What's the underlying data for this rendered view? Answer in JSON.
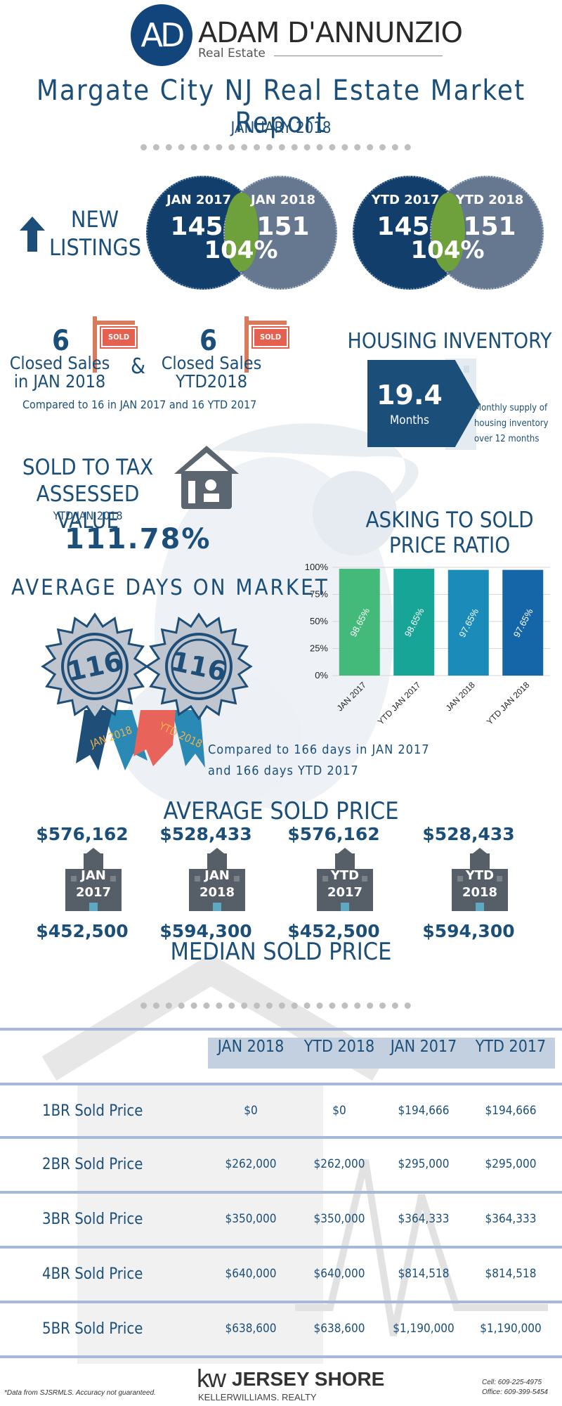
{
  "header": {
    "logo_mark": "AD",
    "brand_name": "ADAM D'ANNUNZIO",
    "brand_sub": "Real Estate",
    "title": "Margate City NJ Real Estate Market Report",
    "month": "JANUARY 2018"
  },
  "new_listings": {
    "label_line1": "NEW",
    "label_line2": "LISTINGS",
    "monthly": {
      "label_a": "JAN 2017",
      "value_a": "145",
      "label_b": "JAN 2018",
      "value_b": "151",
      "pct": "104%"
    },
    "ytd": {
      "label_a": "YTD 2017",
      "value_a": "145",
      "label_b": "YTD 2018",
      "value_b": "151",
      "pct": "104%"
    }
  },
  "closed_sales": {
    "count_month": "6",
    "label_month_1": "Closed Sales",
    "label_month_2": "in JAN 2018",
    "amp": "&",
    "count_ytd": "6",
    "label_ytd_1": "Closed Sales",
    "label_ytd_2": "YTD2018",
    "sign_text": "SOLD",
    "compare": "Compared to 16 in JAN 2017 and 16 YTD 2017"
  },
  "housing_inventory": {
    "title": "HOUSING INVENTORY",
    "value": "19.4",
    "unit": "Months",
    "note_1": "Monthly supply of",
    "note_2": "housing inventory",
    "note_3": "over 12 months"
  },
  "tax_assessed": {
    "title_1": "SOLD TO TAX",
    "title_2": "ASSESSED VALUE",
    "subtitle": "YTD JAN 2018",
    "value": "111.78%"
  },
  "days_on_market": {
    "title": "AVERAGE DAYS ON MARKET",
    "value_a": "116",
    "ribbon_a": "JAN 2018",
    "value_b": "116",
    "ribbon_b": "YTD 2018",
    "compare_1": "Compared to 166 days in JAN 2017",
    "compare_2": "and 166 days YTD 2017"
  },
  "chart_data": {
    "type": "bar",
    "title": "ASKING TO SOLD PRICE RATIO",
    "categories": [
      "JAN 2017",
      "YTD JAN 2017",
      "JAN 2018",
      "YTD JAN 2018"
    ],
    "values": [
      98.65,
      98.65,
      97.65,
      97.65
    ],
    "data_labels": [
      "98.65%",
      "98.65%",
      "97.65%",
      "97.65%"
    ],
    "colors": [
      "#43b97a",
      "#16a596",
      "#1b8cba",
      "#1566a8"
    ],
    "ylim": [
      0,
      100
    ],
    "ytick_labels": [
      "0%",
      "25%",
      "50%",
      "75%",
      "100%"
    ],
    "ytick_values": [
      0,
      25,
      50,
      75,
      100
    ],
    "grid": true
  },
  "sold_price": {
    "avg_title": "AVERAGE SOLD PRICE",
    "median_title": "MEDIAN SOLD PRICE",
    "items": [
      {
        "avg": "$576,162",
        "line1": "JAN",
        "line2": "2017",
        "median": "$452,500"
      },
      {
        "avg": "$528,433",
        "line1": "JAN",
        "line2": "2018",
        "median": "$594,300"
      },
      {
        "avg": "$576,162",
        "line1": "YTD",
        "line2": "2017",
        "median": "$452,500"
      },
      {
        "avg": "$528,433",
        "line1": "YTD",
        "line2": "2018",
        "median": "$594,300"
      }
    ]
  },
  "table": {
    "headers": [
      "JAN 2018",
      "YTD 2018",
      "JAN 2017",
      "YTD 2017"
    ],
    "rows": [
      {
        "label": "1BR Sold Price",
        "cells": [
          "$0",
          "$0",
          "$194,666",
          "$194,666"
        ]
      },
      {
        "label": "2BR Sold Price",
        "cells": [
          "$262,000",
          "$262,000",
          "$295,000",
          "$295,000"
        ]
      },
      {
        "label": "3BR Sold Price",
        "cells": [
          "$350,000",
          "$350,000",
          "$364,333",
          "$364,333"
        ]
      },
      {
        "label": "4BR Sold Price",
        "cells": [
          "$640,000",
          "$640,000",
          "$814,518",
          "$814,518"
        ]
      },
      {
        "label": "5BR Sold Price",
        "cells": [
          "$638,600",
          "$638,600",
          "$1,190,000",
          "$1,190,000"
        ]
      }
    ]
  },
  "footer": {
    "disclaimer": "*Data from SJSRMLS.  Accuracy not guaranteed.",
    "kw_mark": "kw",
    "kw_name": "JERSEY SHORE",
    "kw_sub": "KELLERWILLIAMS. REALTY",
    "cell": "Cell: 609-225-4975",
    "office": "Office: 609-399-5454"
  },
  "icons": {
    "up_arrow": "arrow-up-icon",
    "house": "house-icon",
    "sign": "sold-sign-icon",
    "badge": "award-badge-icon",
    "building": "building-icon"
  }
}
